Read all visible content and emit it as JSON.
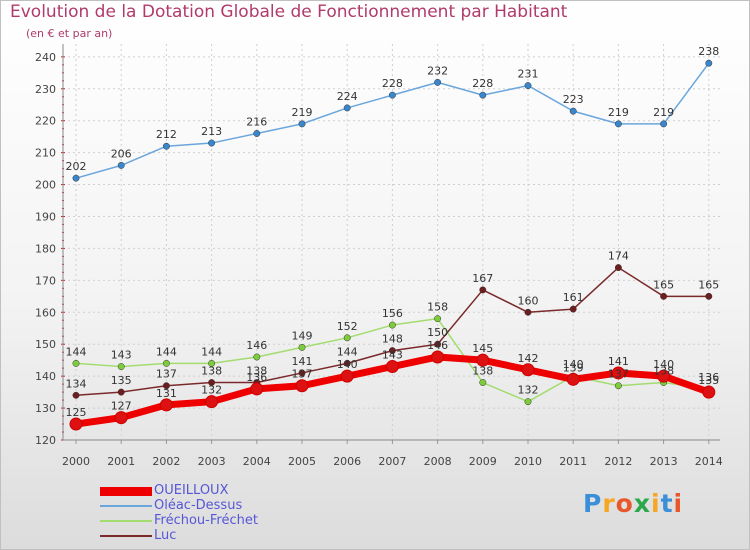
{
  "title": "Evolution de la Dotation Globale de Fonctionnement par Habitant",
  "subtitle": "(en € et par an)",
  "logo": {
    "letters": [
      "P",
      "r",
      "o",
      "x",
      "i",
      "t",
      "i"
    ],
    "colors": [
      "#3b8fd8",
      "#f5a623",
      "#e8572a",
      "#2aa84a",
      "#f5a623",
      "#3b8fd8",
      "#e8572a"
    ]
  },
  "chart_data": {
    "type": "line",
    "title": "Evolution de la Dotation Globale de Fonctionnement par Habitant",
    "subtitle": "(en € et par an)",
    "x": [
      "2000",
      "2001",
      "2002",
      "2003",
      "2004",
      "2005",
      "2006",
      "2007",
      "2008",
      "2009",
      "2010",
      "2011",
      "2012",
      "2013",
      "2014"
    ],
    "ylim": [
      120,
      240
    ],
    "yticks": [
      "120",
      "130",
      "140",
      "150",
      "160",
      "170",
      "180",
      "190",
      "200",
      "210",
      "220",
      "230",
      "240"
    ],
    "grid": true,
    "legend": "bottom-left",
    "series": [
      {
        "name": "OUEILLOUX",
        "color": "#ee0000",
        "marker_color": "#dd1111",
        "emphasis": true,
        "values": [
          125,
          127,
          131,
          132,
          136,
          137,
          140,
          143,
          146,
          145,
          142,
          139,
          141,
          140,
          135
        ],
        "labels": [
          "125",
          "127",
          "131",
          "132",
          "136",
          "137",
          "140",
          "143",
          "146",
          "145",
          "142",
          "139",
          "141",
          "140",
          "135"
        ]
      },
      {
        "name": "Oléac-Dessus",
        "color": "#6aa6dc",
        "marker_color": "#3a86cc",
        "emphasis": false,
        "values": [
          202,
          206,
          212,
          213,
          216,
          219,
          224,
          228,
          232,
          228,
          231,
          223,
          219,
          219,
          238
        ],
        "labels": [
          "202",
          "206",
          "212",
          "213",
          "216",
          "219",
          "224",
          "228",
          "232",
          "228",
          "231",
          "223",
          "219",
          "219",
          "238"
        ]
      },
      {
        "name": "Fréchou-Fréchet",
        "color": "#a3dc6e",
        "marker_color": "#7ccc3c",
        "emphasis": false,
        "values": [
          144,
          143,
          144,
          144,
          146,
          149,
          152,
          156,
          158,
          138,
          132,
          140,
          137,
          138,
          136
        ],
        "labels": [
          "144",
          "143",
          "144",
          "144",
          "146",
          "149",
          "152",
          "156",
          "158",
          "138",
          "132",
          "140",
          "137",
          "138",
          "136"
        ]
      },
      {
        "name": "Luc",
        "color": "#7a2a2a",
        "marker_color": "#6e1e1e",
        "emphasis": false,
        "values": [
          134,
          135,
          137,
          138,
          138,
          141,
          144,
          148,
          150,
          167,
          160,
          161,
          174,
          165,
          165
        ],
        "labels": [
          "134",
          "135",
          "137",
          "138",
          "138",
          "141",
          "144",
          "148",
          "150",
          "167",
          "160",
          "161",
          "174",
          "165",
          "165"
        ]
      }
    ]
  }
}
